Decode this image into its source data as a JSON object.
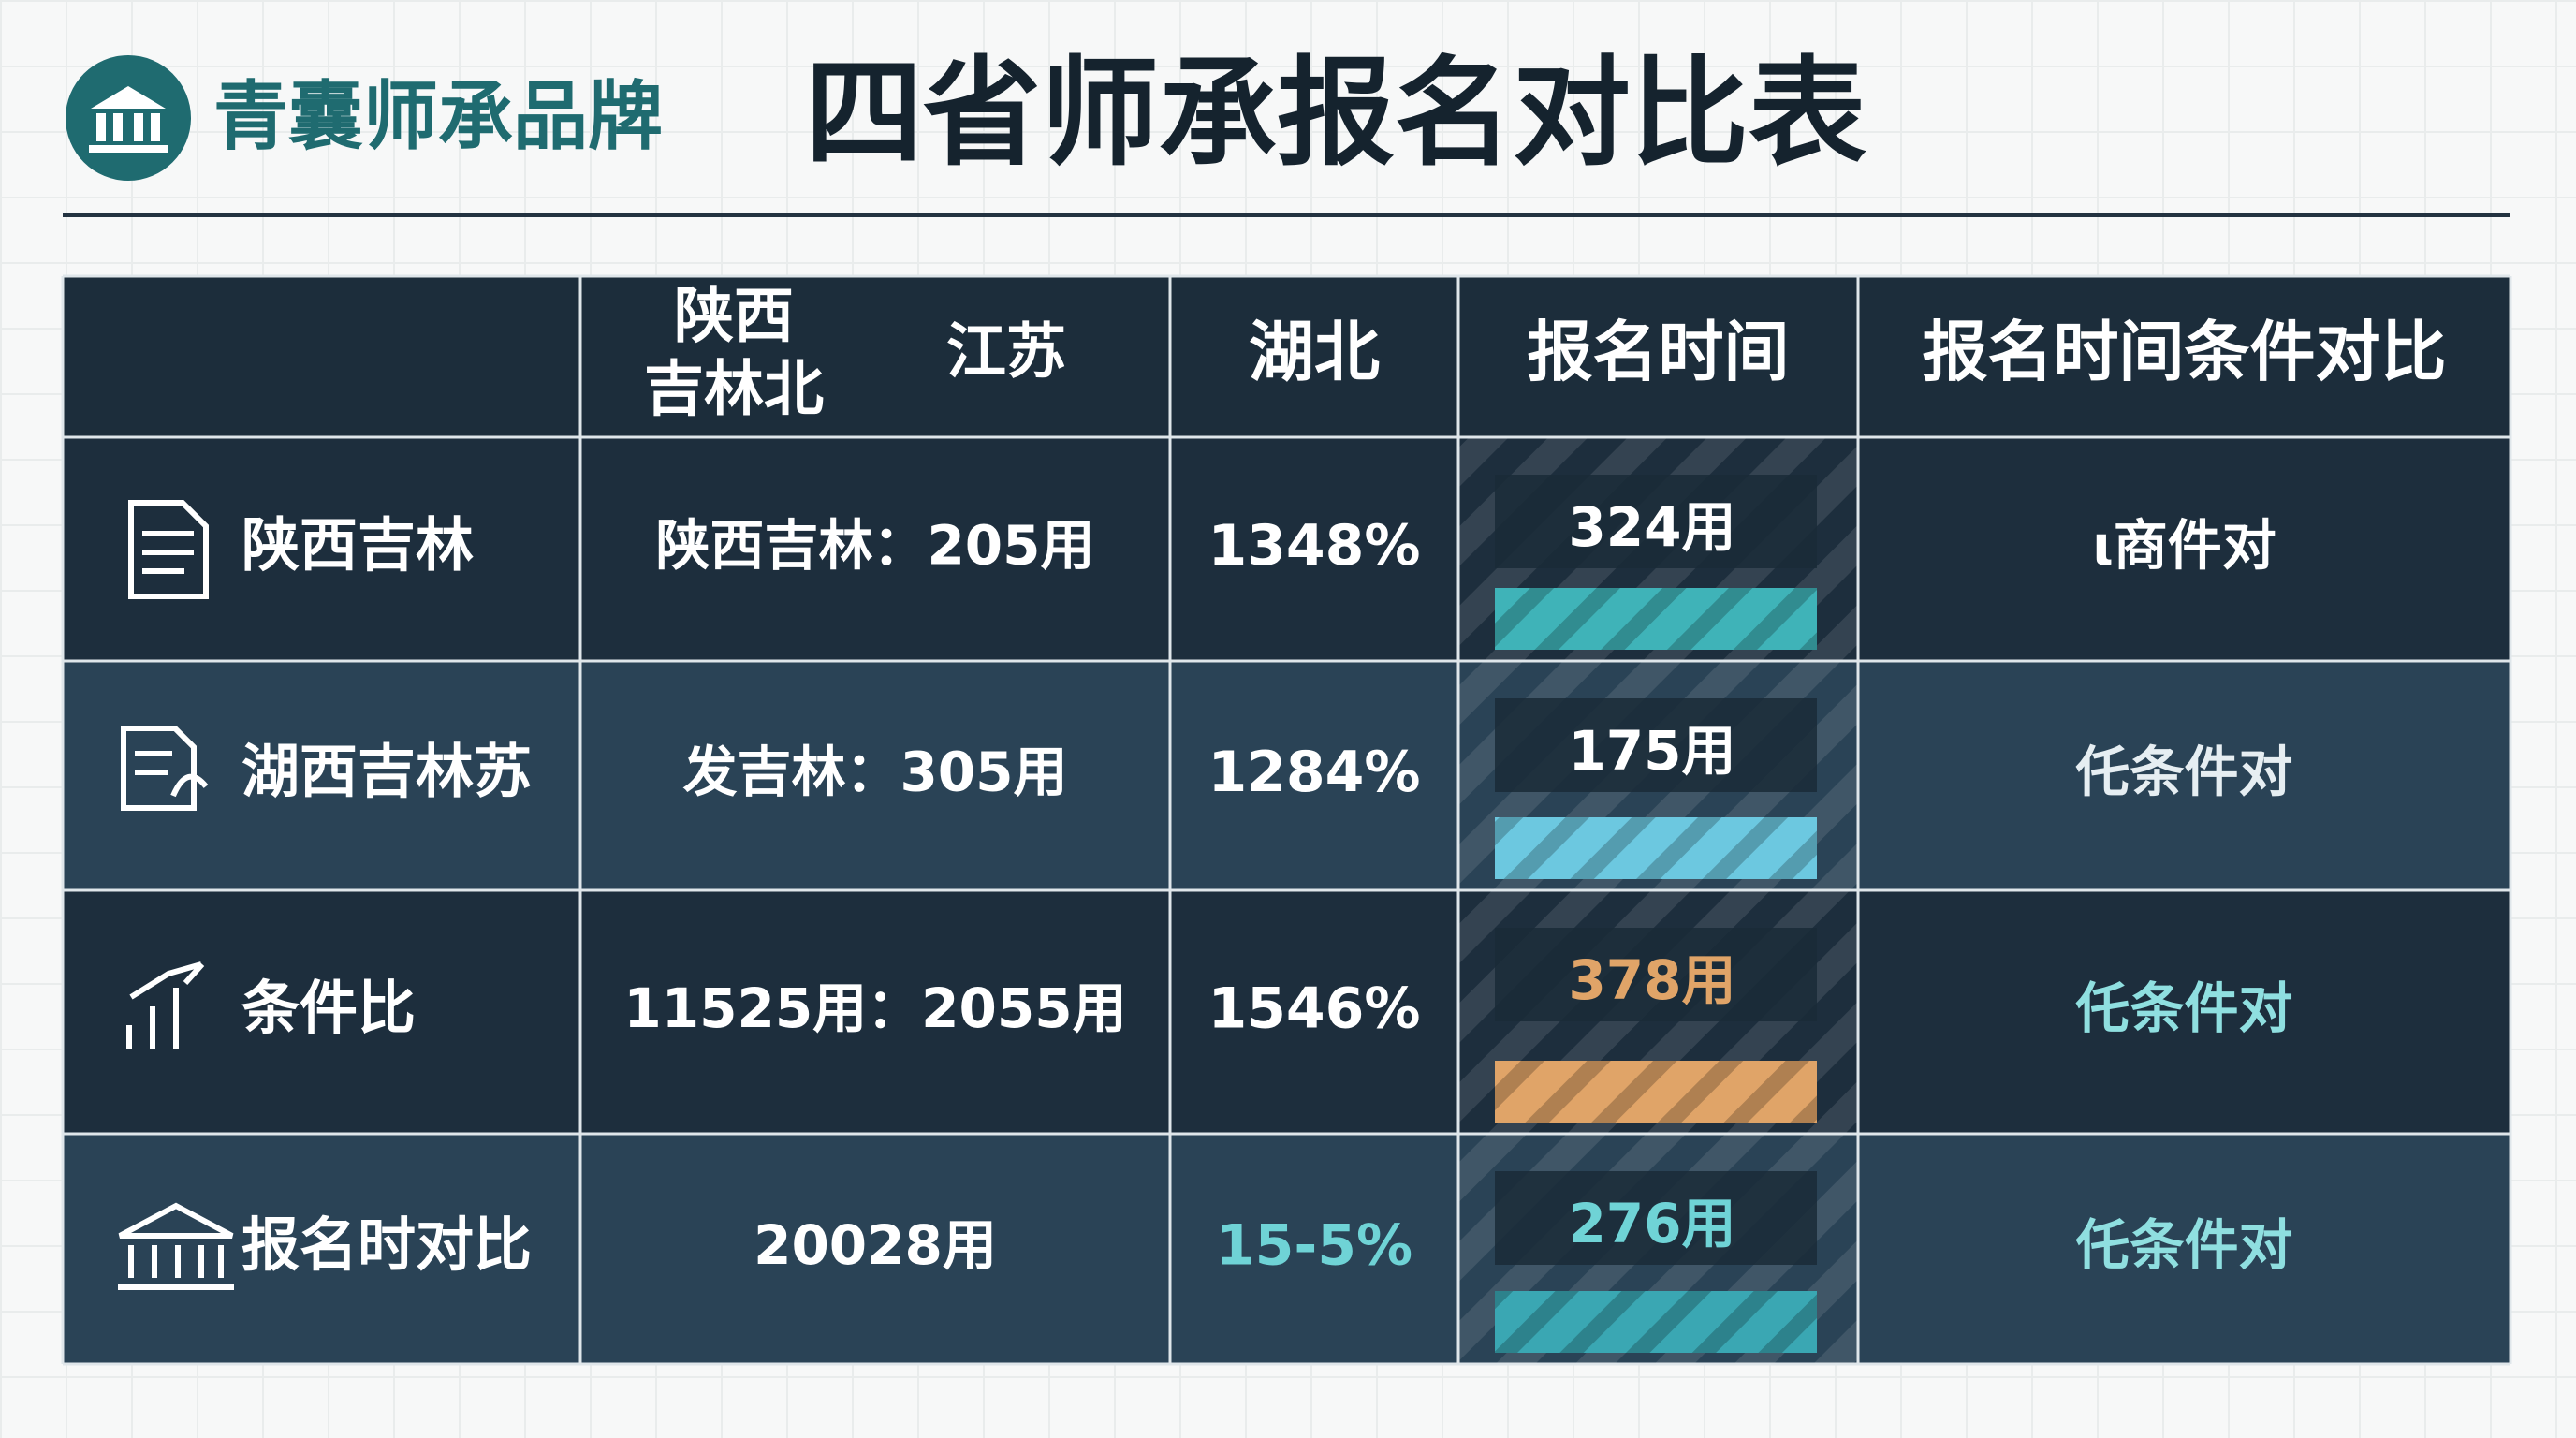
{
  "header": {
    "brand": "青囊师承品牌",
    "title": "四省师承报名对比表"
  },
  "table": {
    "head": {
      "group": [
        "陕西",
        "吉林北"
      ],
      "second": "江苏",
      "columns": [
        "湖北",
        "报名时间",
        "报名时间条件对比"
      ]
    },
    "rows": [
      {
        "label": "陕西吉林",
        "detail": "陕西吉林：205用",
        "rate": "1348%",
        "time": "324用",
        "compare": "ι商件对",
        "accent": "#3fb3b8"
      },
      {
        "label": "湖西吉林苏",
        "detail": "发吉林：305用",
        "rate": "1284%",
        "time": "175用",
        "compare": "仛条件对",
        "accent": "#6cc8e0"
      },
      {
        "label": "条件比",
        "detail": "11525用：2055用",
        "rate": "1546%",
        "time": "378用",
        "compare": "仛条件对",
        "accent": "#e0a468"
      },
      {
        "label": "报名时对比",
        "detail": "20028用",
        "rate": "15-5%",
        "time": "276用",
        "compare": "仛条件对",
        "accent": "#3aa7b3"
      }
    ]
  }
}
